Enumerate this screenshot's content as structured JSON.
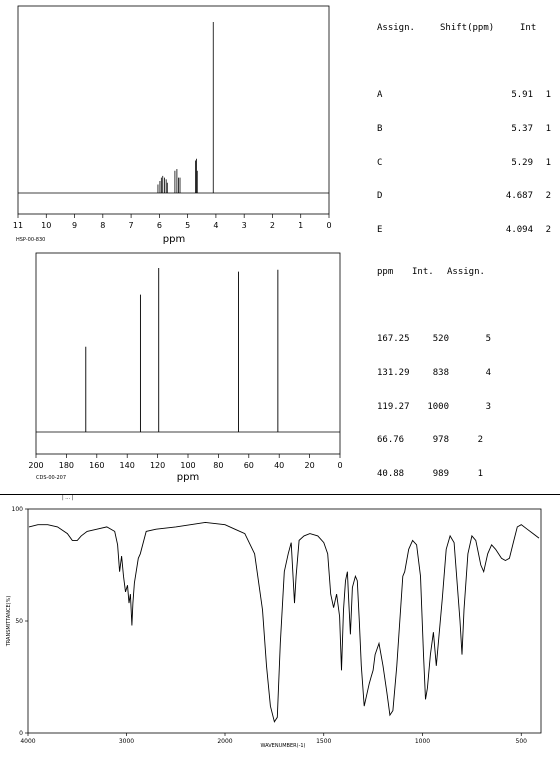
{
  "h1": {
    "table_headers": [
      "Assign.",
      "Shift(ppm)",
      "Int"
    ],
    "table_rows": [
      {
        "assign": "A",
        "shift": "5.91",
        "int": "1"
      },
      {
        "assign": "B",
        "shift": "5.37",
        "int": "1"
      },
      {
        "assign": "C",
        "shift": "5.29",
        "int": "1"
      },
      {
        "assign": "D",
        "shift": "4.687",
        "int": "2"
      },
      {
        "assign": "E",
        "shift": "4.094",
        "int": "2"
      }
    ],
    "code": "HSP-00-830"
  },
  "c13": {
    "table_headers": [
      "ppm",
      "Int.",
      "Assign."
    ],
    "table_rows": [
      {
        "ppm": "167.25",
        "int": "520",
        "assign": "5"
      },
      {
        "ppm": "131.29",
        "int": "838",
        "assign": "4"
      },
      {
        "ppm": "119.27",
        "int": "1000",
        "assign": "3"
      },
      {
        "ppm": "66.76",
        "int": "978",
        "assign": "2"
      },
      {
        "ppm": "40.88",
        "int": "989",
        "assign": "1"
      }
    ],
    "code": "CDS-00-207"
  },
  "chart_data": [
    {
      "type": "line",
      "xlabel": "ppm",
      "xlim": [
        11,
        0
      ],
      "x_ticks": [
        "11",
        "10",
        "9",
        "8",
        "7",
        "6",
        "5",
        "4",
        "3",
        "2",
        "1",
        "0"
      ],
      "peaks": [
        {
          "x": 6.05,
          "y": 0.05
        },
        {
          "x": 5.98,
          "y": 0.07
        },
        {
          "x": 5.93,
          "y": 0.09
        },
        {
          "x": 5.88,
          "y": 0.1
        },
        {
          "x": 5.82,
          "y": 0.09
        },
        {
          "x": 5.76,
          "y": 0.08
        },
        {
          "x": 5.72,
          "y": 0.06
        },
        {
          "x": 5.45,
          "y": 0.13
        },
        {
          "x": 5.38,
          "y": 0.14
        },
        {
          "x": 5.32,
          "y": 0.09
        },
        {
          "x": 5.27,
          "y": 0.09
        },
        {
          "x": 4.72,
          "y": 0.19
        },
        {
          "x": 4.69,
          "y": 0.2
        },
        {
          "x": 4.66,
          "y": 0.13
        },
        {
          "x": 4.094,
          "y": 1.0
        }
      ]
    },
    {
      "type": "line",
      "xlabel": "ppm",
      "xlim": [
        200,
        0
      ],
      "x_ticks": [
        "200",
        "180",
        "160",
        "140",
        "120",
        "100",
        "80",
        "60",
        "40",
        "20",
        "0"
      ],
      "peaks": [
        {
          "x": 167.25,
          "y": 0.52
        },
        {
          "x": 131.29,
          "y": 0.838
        },
        {
          "x": 119.27,
          "y": 1.0
        },
        {
          "x": 66.76,
          "y": 0.978
        },
        {
          "x": 40.88,
          "y": 0.989
        }
      ]
    },
    {
      "type": "line",
      "xlabel": "WAVENUMBER(-1)",
      "ylabel": "TRANSMITTANCE(%)",
      "xlim": [
        4000,
        400
      ],
      "ylim": [
        0,
        100
      ],
      "x_ticks": [
        "4000",
        "3000",
        "2000",
        "1500",
        "1000",
        "500"
      ],
      "y_ticks": [
        "100",
        "50",
        "0"
      ],
      "points": [
        [
          3990,
          92
        ],
        [
          3900,
          93
        ],
        [
          3800,
          93
        ],
        [
          3700,
          92
        ],
        [
          3600,
          89
        ],
        [
          3550,
          86
        ],
        [
          3500,
          86
        ],
        [
          3460,
          88
        ],
        [
          3400,
          90
        ],
        [
          3300,
          91
        ],
        [
          3200,
          92
        ],
        [
          3120,
          90
        ],
        [
          3090,
          84
        ],
        [
          3070,
          72
        ],
        [
          3050,
          79
        ],
        [
          3030,
          70
        ],
        [
          3010,
          63
        ],
        [
          2990,
          66
        ],
        [
          2975,
          58
        ],
        [
          2960,
          62
        ],
        [
          2945,
          48
        ],
        [
          2935,
          58
        ],
        [
          2920,
          67
        ],
        [
          2880,
          78
        ],
        [
          2860,
          80
        ],
        [
          2800,
          90
        ],
        [
          2700,
          91
        ],
        [
          2500,
          92
        ],
        [
          2200,
          94
        ],
        [
          2000,
          93
        ],
        [
          1950,
          91
        ],
        [
          1900,
          89
        ],
        [
          1850,
          80
        ],
        [
          1810,
          55
        ],
        [
          1790,
          30
        ],
        [
          1770,
          12
        ],
        [
          1750,
          5
        ],
        [
          1735,
          7
        ],
        [
          1720,
          40
        ],
        [
          1700,
          72
        ],
        [
          1680,
          80
        ],
        [
          1665,
          85
        ],
        [
          1648,
          58
        ],
        [
          1640,
          70
        ],
        [
          1625,
          86
        ],
        [
          1600,
          88
        ],
        [
          1570,
          89
        ],
        [
          1530,
          88
        ],
        [
          1500,
          85
        ],
        [
          1480,
          80
        ],
        [
          1465,
          62
        ],
        [
          1450,
          56
        ],
        [
          1435,
          62
        ],
        [
          1420,
          52
        ],
        [
          1410,
          28
        ],
        [
          1400,
          55
        ],
        [
          1390,
          68
        ],
        [
          1380,
          72
        ],
        [
          1375,
          62
        ],
        [
          1365,
          44
        ],
        [
          1355,
          65
        ],
        [
          1340,
          70
        ],
        [
          1330,
          68
        ],
        [
          1320,
          50
        ],
        [
          1310,
          30
        ],
        [
          1295,
          12
        ],
        [
          1280,
          18
        ],
        [
          1270,
          22
        ],
        [
          1260,
          25
        ],
        [
          1250,
          28
        ],
        [
          1240,
          35
        ],
        [
          1220,
          40
        ],
        [
          1200,
          30
        ],
        [
          1180,
          18
        ],
        [
          1165,
          8
        ],
        [
          1150,
          10
        ],
        [
          1130,
          30
        ],
        [
          1115,
          50
        ],
        [
          1100,
          70
        ],
        [
          1090,
          72
        ],
        [
          1070,
          82
        ],
        [
          1050,
          86
        ],
        [
          1030,
          84
        ],
        [
          1010,
          70
        ],
        [
          995,
          35
        ],
        [
          985,
          15
        ],
        [
          975,
          20
        ],
        [
          960,
          35
        ],
        [
          945,
          45
        ],
        [
          930,
          30
        ],
        [
          920,
          40
        ],
        [
          900,
          60
        ],
        [
          880,
          82
        ],
        [
          860,
          88
        ],
        [
          840,
          85
        ],
        [
          810,
          50
        ],
        [
          800,
          35
        ],
        [
          790,
          55
        ],
        [
          770,
          80
        ],
        [
          750,
          88
        ],
        [
          730,
          86
        ],
        [
          705,
          75
        ],
        [
          690,
          72
        ],
        [
          670,
          80
        ],
        [
          650,
          84
        ],
        [
          630,
          82
        ],
        [
          600,
          78
        ],
        [
          580,
          77
        ],
        [
          560,
          78
        ],
        [
          540,
          85
        ],
        [
          520,
          92
        ],
        [
          500,
          93
        ],
        [
          470,
          91
        ],
        [
          440,
          89
        ],
        [
          410,
          87
        ]
      ]
    }
  ]
}
